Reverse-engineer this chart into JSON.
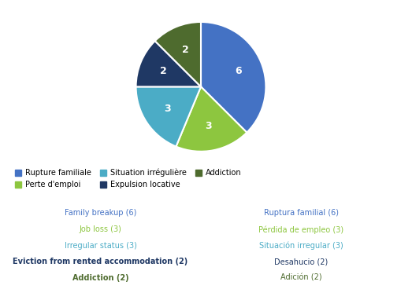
{
  "pie_values": [
    6,
    3,
    3,
    2,
    2
  ],
  "pie_colors": [
    "#4472C4",
    "#8DC63F",
    "#4BACC6",
    "#1F3864",
    "#4E6B2E"
  ],
  "legend_labels": [
    "Rupture familiale",
    "Perte d'emploi",
    "Situation irrégulière",
    "Expulsion locative",
    "Addiction"
  ],
  "legend_colors": [
    "#4472C4",
    "#8DC63F",
    "#4BACC6",
    "#1F3864",
    "#4E6B2E"
  ],
  "english_lines": [
    {
      "text": "Family breakup (6)",
      "color": "#4472C4",
      "bold": false
    },
    {
      "text": "Job loss (3)",
      "color": "#8DC63F",
      "bold": false
    },
    {
      "text": "Irregular status (3)",
      "color": "#4BACC6",
      "bold": false
    },
    {
      "text": "Eviction from rented accommodation (2)",
      "color": "#1F3864",
      "bold": true
    },
    {
      "text": "Addiction (2)",
      "color": "#4E6B2E",
      "bold": true
    }
  ],
  "spanish_lines": [
    {
      "text": "Ruptura familial (6)",
      "color": "#4472C4",
      "bold": false
    },
    {
      "text": "Pérdida de empleo (3)",
      "color": "#8DC63F",
      "bold": false
    },
    {
      "text": "Situación irregular (3)",
      "color": "#4BACC6",
      "bold": false
    },
    {
      "text": "Desahucio (2)",
      "color": "#1F3864",
      "bold": false
    },
    {
      "text": "Adición (2)",
      "color": "#4E6B2E",
      "bold": false
    }
  ],
  "startangle": 90,
  "background_color": "#ffffff"
}
